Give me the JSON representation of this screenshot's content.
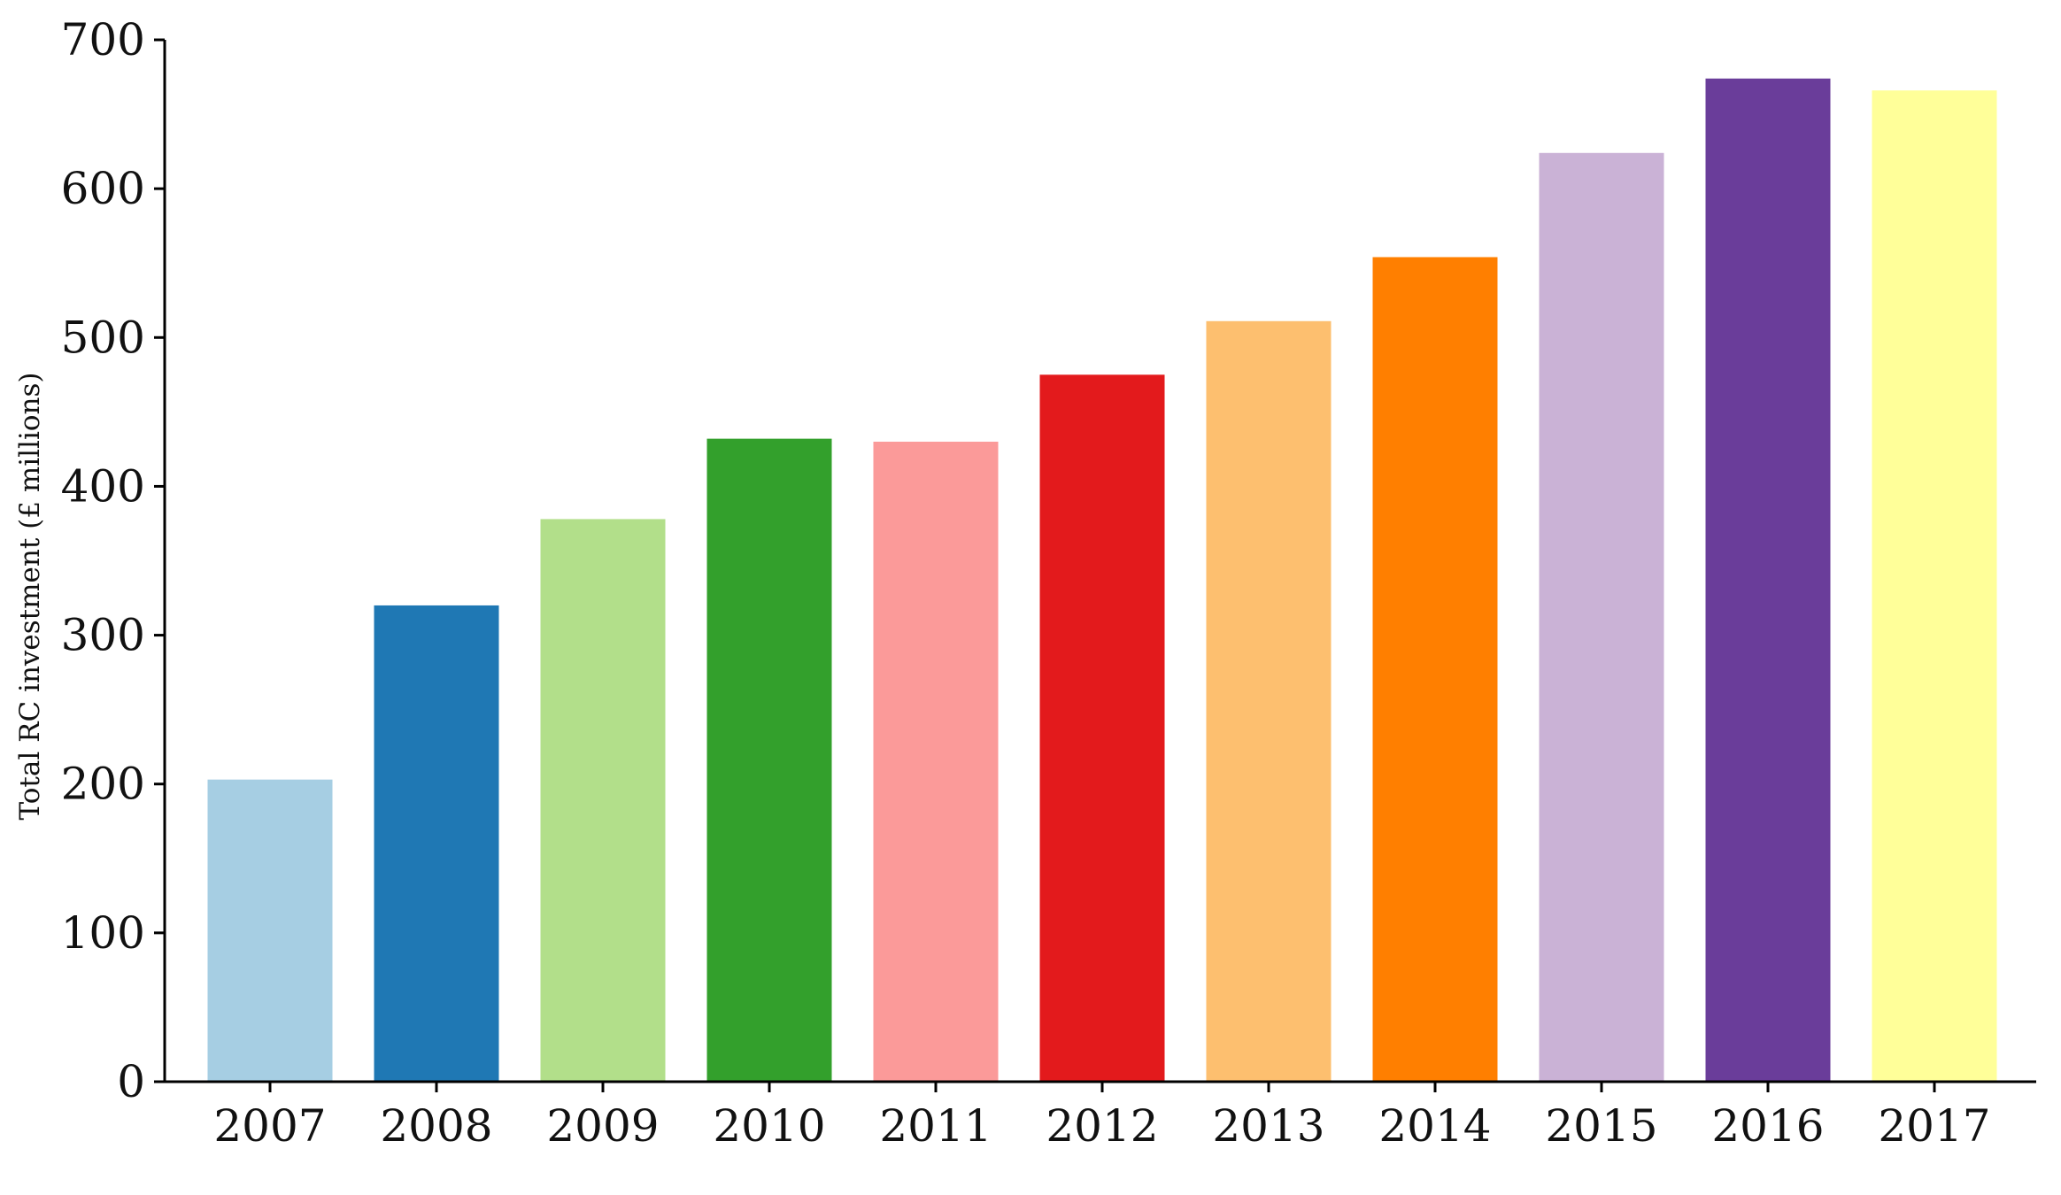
{
  "chart_data": {
    "type": "bar",
    "title": "",
    "xlabel": "",
    "ylabel": "Total RC investment (£ millions)",
    "categories": [
      "2007",
      "2008",
      "2009",
      "2010",
      "2011",
      "2012",
      "2013",
      "2014",
      "2015",
      "2016",
      "2017"
    ],
    "values": [
      203,
      320,
      378,
      432,
      430,
      475,
      511,
      554,
      624,
      674,
      666
    ],
    "colors": [
      "#a6cee3",
      "#1f78b4",
      "#b2df8a",
      "#33a02c",
      "#fb9a99",
      "#e31a1c",
      "#fdbf6f",
      "#ff7f00",
      "#cab2d6",
      "#6a3d9a",
      "#ffff99"
    ],
    "ylim": [
      0,
      700
    ],
    "yticks": [
      "0",
      "100",
      "200",
      "300",
      "400",
      "500",
      "600",
      "700"
    ],
    "grid": false,
    "legend": "none"
  }
}
